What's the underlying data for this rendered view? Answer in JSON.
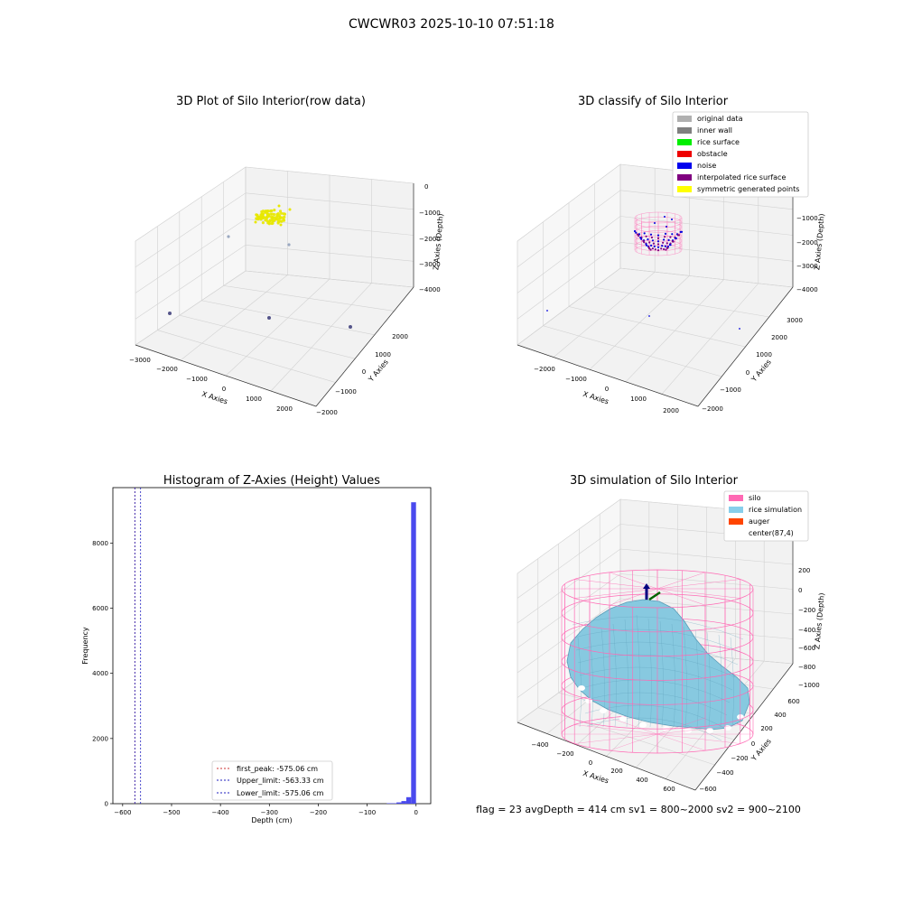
{
  "suptitle": "CWCWR03 2025-10-10 07:51:18",
  "colors": {
    "pane": "#f2f2f2",
    "pane_wall": "#f7f7f7",
    "grid": "#d2d2d2",
    "hist_bar": "#4a4aee",
    "peak_line": "#cc3333",
    "limit_line": "#1f1fbf",
    "silo": "#ff69b4",
    "rice": "#87c9e0",
    "auger": "#ff4500",
    "yellow": "#e8e800",
    "noise": "#0000dd",
    "purple": "#800080",
    "gray": "#888888",
    "dark_point": "#55558a"
  },
  "panel1": {
    "title": "3D Plot of Silo Interior(row data)",
    "xlabel": "X Axies",
    "ylabel": "Y Axies",
    "zlabel": "Z Axies (Depth)",
    "xticks": [
      "−3000",
      "−2000",
      "−1000",
      "0",
      "1000",
      "2000"
    ],
    "yticks": [
      "−2000",
      "−1000",
      "0",
      "1000",
      "2000"
    ],
    "zticks": [
      "0",
      "−1000",
      "−2000",
      "−3000",
      "−4000"
    ]
  },
  "panel2": {
    "title": "3D classify of Silo Interior",
    "xlabel": "X Axies",
    "ylabel": "Y Axies",
    "zlabel": "Z Axies (Depth)",
    "xticks": [
      "−2000",
      "−1000",
      "0",
      "1000",
      "2000"
    ],
    "yticks": [
      "−2000",
      "−1000",
      "0",
      "1000",
      "2000",
      "3000"
    ],
    "zticks": [
      "−1000",
      "−2000",
      "−3000",
      "−4000"
    ],
    "legend": [
      {
        "label": "original data",
        "color": "#b0b0b0"
      },
      {
        "label": "inner wall",
        "color": "#808080"
      },
      {
        "label": "rice surface",
        "color": "#00ee00"
      },
      {
        "label": "obstacle",
        "color": "#ee0000"
      },
      {
        "label": "noise",
        "color": "#0000ee"
      },
      {
        "label": "interpolated rice surface",
        "color": "#800080"
      },
      {
        "label": "symmetric generated points",
        "color": "#ffff00"
      }
    ]
  },
  "panel4": {
    "title": "3D simulation of Silo Interior",
    "xlabel": "X Axies",
    "ylabel": "Y Axies",
    "zlabel": "Z Axies (Depth)",
    "xticks": [
      "−400",
      "−200",
      "0",
      "200",
      "400",
      "600"
    ],
    "yticks": [
      "−600",
      "−400",
      "−200",
      "0",
      "200",
      "400",
      "600"
    ],
    "zticks": [
      "200",
      "0",
      "−200",
      "−400",
      "−600",
      "−800",
      "−1000"
    ],
    "legend": [
      {
        "label": "silo",
        "color": "#ff69b4"
      },
      {
        "label": "rice simulation",
        "color": "#87ceeb"
      },
      {
        "label": "auger",
        "color": "#ff4500"
      },
      {
        "label": "center(87,4)",
        "color": "#ffffff"
      }
    ]
  },
  "footer": "flag = 23   avgDepth = 414 cm   sv1 = 800~2000   sv2 = 900~2100",
  "chart_data": {
    "type": "bar",
    "title": "Histogram of Z-Axies (Height) Values",
    "xlabel": "Depth (cm)",
    "ylabel": "Frequency",
    "xlim": [
      -620,
      30
    ],
    "ylim": [
      0,
      9700
    ],
    "xticks": [
      -600,
      -500,
      -400,
      -300,
      -200,
      -100,
      0
    ],
    "xtick_labels": [
      "−600",
      "−500",
      "−400",
      "−300",
      "−200",
      "−100",
      "0"
    ],
    "yticks": [
      0,
      2000,
      4000,
      6000,
      8000
    ],
    "bins": [
      {
        "x0": -60,
        "x1": -40,
        "count": 15
      },
      {
        "x0": -40,
        "x1": -30,
        "count": 40
      },
      {
        "x0": -30,
        "x1": -20,
        "count": 80
      },
      {
        "x0": -20,
        "x1": -10,
        "count": 200
      },
      {
        "x0": -10,
        "x1": 0,
        "count": 9250
      }
    ],
    "lines": [
      {
        "label": "first_peak: -575.06 cm",
        "x": -575.06,
        "color": "#cc3333"
      },
      {
        "label": "Upper_limit: -563.33 cm",
        "x": -563.33,
        "color": "#1f1fbf"
      },
      {
        "label": "Lower_limit: -575.06 cm",
        "x": -575.06,
        "color": "#1f1fbf"
      }
    ]
  }
}
